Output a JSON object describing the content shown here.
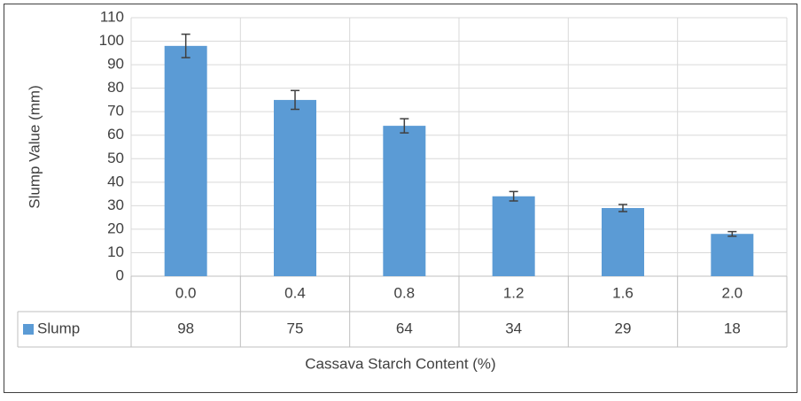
{
  "chart_data": {
    "type": "bar",
    "xlabel": "Cassava Starch Content (%)",
    "ylabel": "Slump Value (mm)",
    "categories": [
      "0.0",
      "0.4",
      "0.8",
      "1.2",
      "1.6",
      "2.0"
    ],
    "series": [
      {
        "name": "Slump",
        "color": "#5b9bd5",
        "values": [
          98,
          75,
          64,
          34,
          29,
          18
        ],
        "errors": [
          5,
          4,
          3,
          2,
          1.5,
          1
        ]
      }
    ],
    "ylim": [
      0,
      110
    ],
    "yticks": [
      0,
      10,
      20,
      30,
      40,
      50,
      60,
      70,
      80,
      90,
      100,
      110
    ],
    "grid": true,
    "data_table": true
  }
}
